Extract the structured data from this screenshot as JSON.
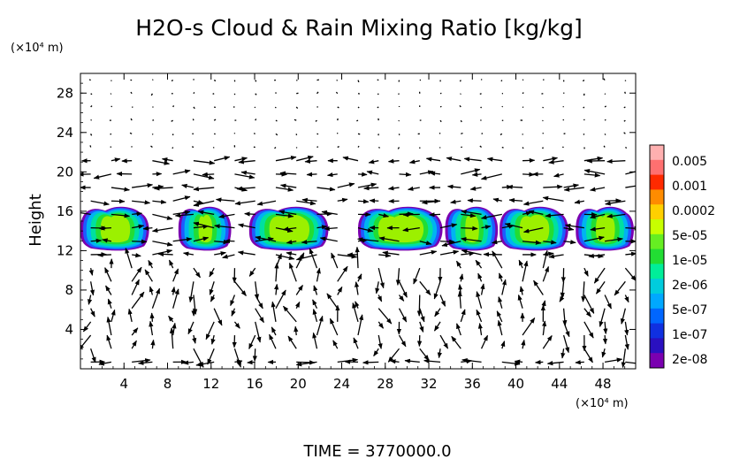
{
  "chart_data": {
    "type": "heatmap",
    "title": "H2O-s Cloud & Rain Mixing Ratio [kg/kg]",
    "ylabel": "Height",
    "x_units_label": "(×10⁴ m)",
    "y_units_label": "(×10⁴ m)",
    "xlim": [
      0,
      51
    ],
    "ylim": [
      0,
      30
    ],
    "x_ticks": [
      4,
      8,
      12,
      16,
      20,
      24,
      28,
      32,
      36,
      40,
      44,
      48
    ],
    "x_tick_labels": [
      "4",
      "8",
      "12",
      "16",
      "20",
      "24",
      "28",
      "32",
      "36",
      "40",
      "44",
      "48"
    ],
    "y_ticks": [
      4,
      8,
      12,
      16,
      20,
      24,
      28
    ],
    "y_tick_labels": [
      "4",
      "8",
      "12",
      "16",
      "20",
      "24",
      "28"
    ],
    "colorbar": {
      "labels": [
        "0.005",
        "0.001",
        "0.0002",
        "5e-05",
        "1e-05",
        "2e-06",
        "5e-07",
        "1e-07",
        "2e-08"
      ],
      "colors": [
        "#ffb0b0",
        "#ff7070",
        "#ff2a00",
        "#ff8c00",
        "#ffd000",
        "#c8ff00",
        "#66ee22",
        "#22dd33",
        "#00ee99",
        "#00ccdd",
        "#00a8ff",
        "#0066ff",
        "#1030e0",
        "#2a10c0",
        "#7a00b0"
      ]
    },
    "cloud_layer": {
      "base": 12,
      "top": 16.5,
      "clouds": [
        {
          "x_start": 0,
          "x_end": 6.5
        },
        {
          "x_start": 9,
          "x_end": 14
        },
        {
          "x_start": 15.5,
          "x_end": 23
        },
        {
          "x_start": 25.5,
          "x_end": 33.5
        },
        {
          "x_start": 33.5,
          "x_end": 38.5
        },
        {
          "x_start": 38.5,
          "x_end": 45
        },
        {
          "x_start": 45.5,
          "x_end": 51
        }
      ]
    },
    "grid": false,
    "legend_placement": "right"
  },
  "footer": {
    "time_label": "TIME  =  3770000.0"
  }
}
